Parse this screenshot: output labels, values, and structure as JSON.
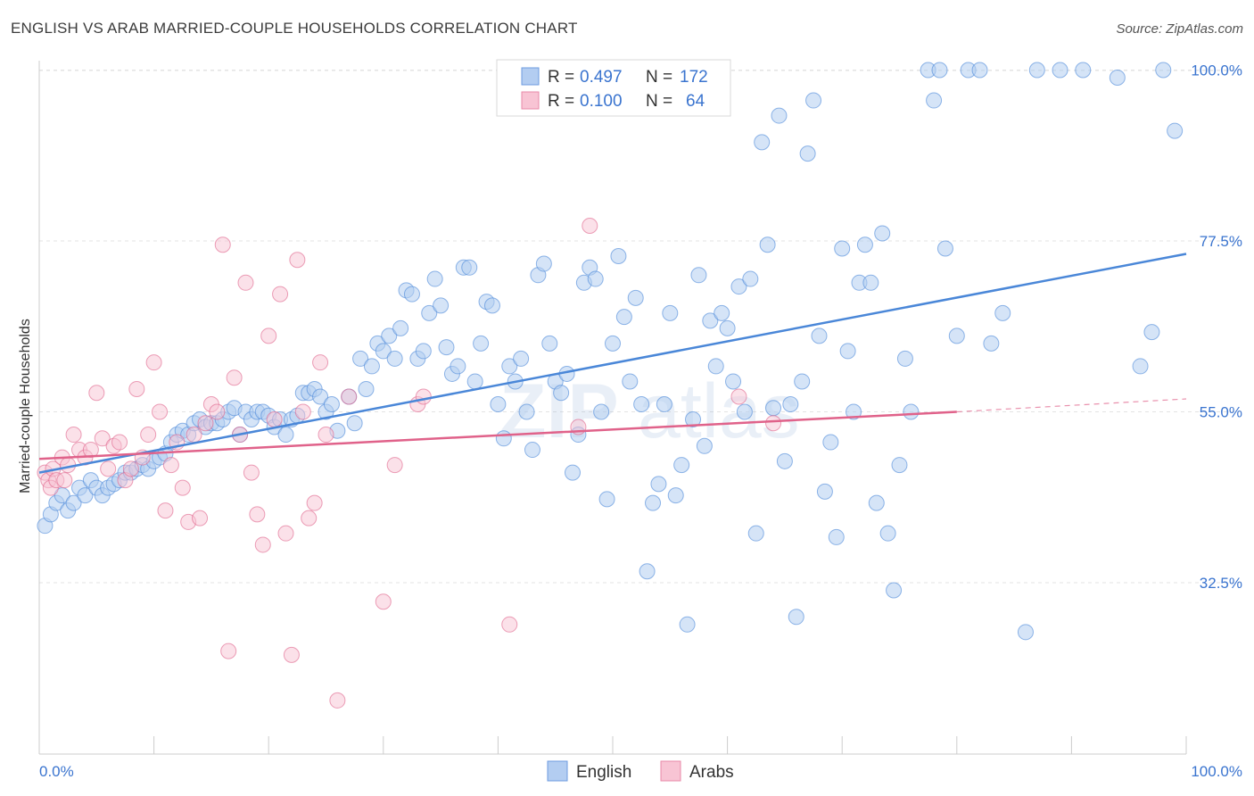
{
  "header": {
    "title": "ENGLISH VS ARAB MARRIED-COUPLE HOUSEHOLDS CORRELATION CHART",
    "source": "Source: ZipAtlas.com"
  },
  "watermark": {
    "part1": "ZIP",
    "part2": "atlas"
  },
  "legend_box": {
    "rows": [
      {
        "r_label": "R =",
        "r_value": "0.497",
        "n_label": "N =",
        "n_value": "172",
        "color": "#a9c7f0"
      },
      {
        "r_label": "R =",
        "r_value": "0.100",
        "n_label": "N =",
        "n_value": "64",
        "color": "#f6bcce"
      }
    ]
  },
  "bottom_legend": [
    {
      "label": "English",
      "color": "#a9c7f0"
    },
    {
      "label": "Arabs",
      "color": "#f6bcce"
    }
  ],
  "chart_data": {
    "type": "scatter",
    "ylabel": "Married-couple Households",
    "xlabel": "",
    "xlim": [
      0,
      100
    ],
    "ylim": [
      13,
      101
    ],
    "x_tick_labels": {
      "left": "0.0%",
      "right": "100.0%"
    },
    "y_ticks": [
      {
        "value": 100,
        "label": "100.0%"
      },
      {
        "value": 77.5,
        "label": "77.5%"
      },
      {
        "value": 55,
        "label": "55.0%"
      },
      {
        "value": 32.5,
        "label": "32.5%"
      }
    ],
    "grid": true,
    "legend_position": "top-center",
    "series": [
      {
        "name": "English",
        "color": "#4a87d8",
        "fill": "#b3cdf1",
        "trend": {
          "x0": 0,
          "y0": 47.0,
          "x1": 100,
          "y1": 75.8,
          "style": "solid"
        },
        "points": [
          [
            0.5,
            40
          ],
          [
            1,
            41.5
          ],
          [
            1.5,
            43
          ],
          [
            2,
            44
          ],
          [
            2.5,
            42
          ],
          [
            3,
            43
          ],
          [
            3.5,
            45
          ],
          [
            4,
            44
          ],
          [
            4.5,
            46
          ],
          [
            5,
            45
          ],
          [
            5.5,
            44
          ],
          [
            6,
            45
          ],
          [
            6.5,
            45.5
          ],
          [
            7,
            46
          ],
          [
            7.5,
            47
          ],
          [
            8,
            47
          ],
          [
            8.5,
            47.5
          ],
          [
            9,
            48
          ],
          [
            9.5,
            47.5
          ],
          [
            10,
            48.5
          ],
          [
            10.5,
            49
          ],
          [
            11,
            49.5
          ],
          [
            11.5,
            51
          ],
          [
            12,
            52
          ],
          [
            12.5,
            52.5
          ],
          [
            13,
            52
          ],
          [
            13.5,
            53.5
          ],
          [
            14,
            54
          ],
          [
            14.5,
            53
          ],
          [
            15,
            53.5
          ],
          [
            15.5,
            53.5
          ],
          [
            16,
            54
          ],
          [
            16.5,
            55
          ],
          [
            17,
            55.5
          ],
          [
            17.5,
            52
          ],
          [
            18,
            55
          ],
          [
            18.5,
            54
          ],
          [
            19,
            55
          ],
          [
            19.5,
            55
          ],
          [
            20,
            54.5
          ],
          [
            20.5,
            53
          ],
          [
            21,
            54
          ],
          [
            21.5,
            52
          ],
          [
            22,
            54
          ],
          [
            22.5,
            54.5
          ],
          [
            23,
            57.5
          ],
          [
            23.5,
            57.5
          ],
          [
            24,
            58
          ],
          [
            24.5,
            57
          ],
          [
            25,
            55
          ],
          [
            25.5,
            56
          ],
          [
            26,
            52.5
          ],
          [
            27,
            57
          ],
          [
            27.5,
            53.5
          ],
          [
            28,
            62
          ],
          [
            28.5,
            58
          ],
          [
            29,
            61
          ],
          [
            29.5,
            64
          ],
          [
            30,
            63
          ],
          [
            30.5,
            65
          ],
          [
            31,
            62
          ],
          [
            31.5,
            66
          ],
          [
            32,
            71
          ],
          [
            32.5,
            70.5
          ],
          [
            33,
            62
          ],
          [
            33.5,
            63
          ],
          [
            34,
            68
          ],
          [
            34.5,
            72.5
          ],
          [
            35,
            69
          ],
          [
            35.5,
            63.5
          ],
          [
            36,
            60
          ],
          [
            36.5,
            61
          ],
          [
            37,
            74
          ],
          [
            37.5,
            74
          ],
          [
            38,
            59
          ],
          [
            38.5,
            64
          ],
          [
            39,
            69.5
          ],
          [
            39.5,
            69
          ],
          [
            40,
            56
          ],
          [
            40.5,
            51.5
          ],
          [
            41,
            61
          ],
          [
            41.5,
            59
          ],
          [
            42,
            62
          ],
          [
            42.5,
            55
          ],
          [
            43,
            50
          ],
          [
            43.5,
            73
          ],
          [
            44,
            74.5
          ],
          [
            44.5,
            64
          ],
          [
            45,
            59
          ],
          [
            45.5,
            57.5
          ],
          [
            46,
            60
          ],
          [
            46.5,
            47
          ],
          [
            47,
            52
          ],
          [
            47.5,
            72
          ],
          [
            48,
            74
          ],
          [
            48.5,
            72.5
          ],
          [
            49,
            55
          ],
          [
            49.5,
            43.5
          ],
          [
            50,
            64
          ],
          [
            50.5,
            75.5
          ],
          [
            51,
            67.5
          ],
          [
            51.5,
            59
          ],
          [
            52,
            70
          ],
          [
            52.5,
            56
          ],
          [
            53,
            34
          ],
          [
            53.5,
            43
          ],
          [
            54,
            45.5
          ],
          [
            54.5,
            56
          ],
          [
            55,
            68
          ],
          [
            55.5,
            44
          ],
          [
            56,
            48
          ],
          [
            56.5,
            27
          ],
          [
            57,
            54
          ],
          [
            57.5,
            73
          ],
          [
            58,
            50.5
          ],
          [
            58.5,
            67
          ],
          [
            59,
            61
          ],
          [
            59.5,
            68
          ],
          [
            60,
            66
          ],
          [
            60.5,
            59
          ],
          [
            61,
            71.5
          ],
          [
            61.5,
            55
          ],
          [
            62,
            72.5
          ],
          [
            62.5,
            39
          ],
          [
            63,
            90.5
          ],
          [
            63.5,
            77
          ],
          [
            64,
            55.5
          ],
          [
            64.5,
            94
          ],
          [
            65,
            48.5
          ],
          [
            65.5,
            56
          ],
          [
            66,
            28
          ],
          [
            66.5,
            59
          ],
          [
            67,
            89
          ],
          [
            67.5,
            96
          ],
          [
            68,
            65
          ],
          [
            68.5,
            44.5
          ],
          [
            69,
            51
          ],
          [
            69.5,
            38.5
          ],
          [
            70,
            76.5
          ],
          [
            70.5,
            63
          ],
          [
            71,
            55
          ],
          [
            71.5,
            72
          ],
          [
            72,
            77
          ],
          [
            72.5,
            72
          ],
          [
            73,
            43
          ],
          [
            73.5,
            78.5
          ],
          [
            74,
            39
          ],
          [
            74.5,
            31.5
          ],
          [
            75,
            48
          ],
          [
            75.5,
            62
          ],
          [
            76,
            55
          ],
          [
            77.5,
            100
          ],
          [
            78,
            96
          ],
          [
            78.5,
            100
          ],
          [
            79,
            76.5
          ],
          [
            80,
            65
          ],
          [
            81,
            100
          ],
          [
            82,
            100
          ],
          [
            83,
            64
          ],
          [
            84,
            68
          ],
          [
            86,
            26
          ],
          [
            87,
            100
          ],
          [
            89,
            100
          ],
          [
            91,
            100
          ],
          [
            94,
            99
          ],
          [
            96,
            61
          ],
          [
            97,
            65.5
          ],
          [
            98,
            100
          ],
          [
            99,
            92
          ]
        ]
      },
      {
        "name": "Arabs",
        "color": "#e0628a",
        "fill": "#f8c4d4",
        "trend": {
          "x0": 0,
          "y0": 48.8,
          "x1": 80,
          "y1": 55.0,
          "dash_to_x": 100,
          "dash_to_y": 56.7,
          "style": "solid"
        },
        "points": [
          [
            0.5,
            47
          ],
          [
            0.8,
            46
          ],
          [
            1,
            45
          ],
          [
            1.2,
            47.5
          ],
          [
            1.5,
            46
          ],
          [
            2,
            49
          ],
          [
            2.2,
            46
          ],
          [
            2.5,
            48
          ],
          [
            3,
            52
          ],
          [
            3.5,
            50
          ],
          [
            4,
            49
          ],
          [
            4.5,
            50
          ],
          [
            5,
            57.5
          ],
          [
            5.5,
            51.5
          ],
          [
            6,
            47.5
          ],
          [
            6.5,
            50.5
          ],
          [
            7,
            51
          ],
          [
            7.5,
            46
          ],
          [
            8,
            47.5
          ],
          [
            8.5,
            58
          ],
          [
            9,
            49
          ],
          [
            9.5,
            52
          ],
          [
            10,
            61.5
          ],
          [
            10.5,
            55
          ],
          [
            11,
            42
          ],
          [
            11.5,
            48
          ],
          [
            12,
            51
          ],
          [
            12.5,
            45
          ],
          [
            13,
            40.5
          ],
          [
            13.5,
            52
          ],
          [
            14,
            41
          ],
          [
            14.5,
            53.5
          ],
          [
            15,
            56
          ],
          [
            15.5,
            55
          ],
          [
            16,
            77
          ],
          [
            16.5,
            23.5
          ],
          [
            17,
            59.5
          ],
          [
            17.5,
            52
          ],
          [
            18,
            72
          ],
          [
            18.5,
            47
          ],
          [
            19,
            41.5
          ],
          [
            19.5,
            37.5
          ],
          [
            20,
            65
          ],
          [
            20.5,
            54
          ],
          [
            21,
            70.5
          ],
          [
            21.5,
            39
          ],
          [
            22,
            23
          ],
          [
            22.5,
            75
          ],
          [
            23,
            55
          ],
          [
            23.5,
            41
          ],
          [
            24,
            43
          ],
          [
            24.5,
            61.5
          ],
          [
            25,
            52
          ],
          [
            26,
            17
          ],
          [
            27,
            57
          ],
          [
            30,
            30
          ],
          [
            31,
            48
          ],
          [
            33,
            56
          ],
          [
            33.5,
            57
          ],
          [
            41,
            27
          ],
          [
            47,
            53
          ],
          [
            48,
            79.5
          ],
          [
            61,
            57
          ],
          [
            64,
            53.5
          ]
        ]
      }
    ]
  }
}
